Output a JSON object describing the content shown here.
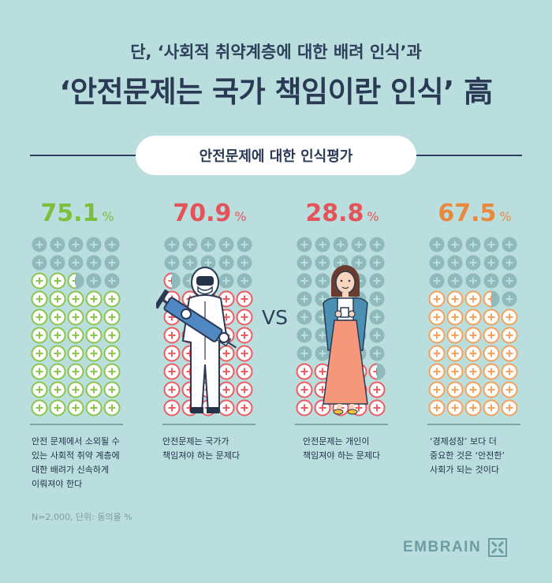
{
  "header": {
    "subtitle": "단, ‘사회적 취약계층에 대한 배려 인식’과",
    "title": "‘안전문제는 국가 책임이란 인식’ 高"
  },
  "section": {
    "label": "안전문제에 대한 인식평가"
  },
  "vs_label": "VS",
  "footnote": "N=2,000, 단위: 동의율 %",
  "brand": {
    "name": "EMBRAIN"
  },
  "colors": {
    "background": "#b9dedd",
    "empty_dot": "#8fb9ba",
    "green": "#8ac64e",
    "red": "#ee5c62",
    "orange": "#f6a15b"
  },
  "chart_data": {
    "type": "pictograph",
    "unit": "%",
    "items": [
      {
        "value": 75.1,
        "label": "75.1",
        "unit": "%",
        "color": "#8ac64e",
        "text_color": "#7cbf3d",
        "lines": [
          "안전 문제에서 소외될 수",
          "있는 사회적 취약 계층에",
          "대한 배려가 신속하게",
          "이뤄져야 한다"
        ]
      },
      {
        "value": 70.9,
        "label": "70.9",
        "unit": "%",
        "color": "#ee5c62",
        "text_color": "#e4535a",
        "lines": [
          "안전문제는 국가가",
          "책임져야 하는 문제다"
        ]
      },
      {
        "value": 28.8,
        "label": "28.8",
        "unit": "%",
        "color": "#ee5c62",
        "text_color": "#e4535a",
        "lines": [
          "안전문제는 개인이",
          "책임져야 하는 문제다"
        ]
      },
      {
        "value": 67.5,
        "label": "67.5",
        "unit": "%",
        "color": "#f6a15b",
        "text_color": "#e9883f",
        "lines": [
          "‘경제성장’ 보다 더",
          "중요한 것은 ‘안전한’",
          "사회가 되는 것이다"
        ]
      }
    ]
  }
}
